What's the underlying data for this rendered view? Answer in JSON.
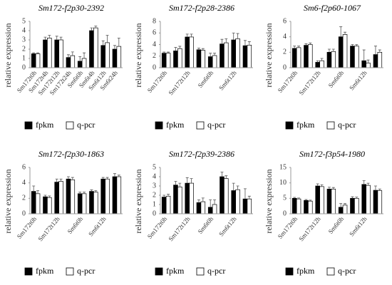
{
  "chart_data": [
    {
      "type": "bar",
      "title": "Sm172-f2p30-2392",
      "y_label": "relative expression",
      "categories": [
        "Sm172t0h",
        "Sm172t4h",
        "Sm172t12h",
        "Sm172t24h",
        "Sm6t0h",
        "Sm6t4h",
        "Sm6t12h",
        "Sm6t24h"
      ],
      "series": [
        {
          "name": "fpkm",
          "color": "#000000",
          "values": [
            1.5,
            3.0,
            3.0,
            1.1,
            0.7,
            4.0,
            2.4,
            2.0
          ],
          "errors": [
            0.1,
            0.3,
            0.4,
            0.3,
            0.5,
            0.3,
            0.5,
            0.4
          ]
        },
        {
          "name": "q-pcr",
          "color": "#ffffff",
          "values": [
            1.5,
            3.2,
            3.0,
            1.3,
            1.0,
            4.3,
            2.7,
            2.3
          ],
          "errors": [
            0.1,
            0.3,
            0.3,
            0.4,
            0.6,
            0.2,
            0.8,
            0.9
          ]
        }
      ],
      "ylim": [
        0,
        5
      ],
      "yticks": [
        0,
        1,
        2,
        3,
        4,
        5
      ]
    },
    {
      "type": "bar",
      "title": "Sm172-f2p28-2386",
      "y_label": "relative expression",
      "categories": [
        "Sm172t0h",
        null,
        "Sm172t12h",
        null,
        "Sm6t0h",
        null,
        "Sm6t12h",
        null
      ],
      "series": [
        {
          "name": "fpkm",
          "color": "#000000",
          "values": [
            2.5,
            2.9,
            5.3,
            3.1,
            1.9,
            4.1,
            4.8,
            3.8
          ],
          "errors": [
            0.2,
            0.6,
            0.5,
            0.3,
            0.6,
            0.8,
            1.2,
            0.9
          ]
        },
        {
          "name": "q-pcr",
          "color": "#ffffff",
          "values": [
            2.5,
            3.3,
            5.3,
            3.0,
            2.1,
            4.3,
            5.0,
            3.9
          ],
          "errors": [
            0.2,
            0.4,
            0.5,
            0.3,
            0.4,
            0.7,
            0.9,
            0.6
          ]
        }
      ],
      "ylim": [
        0,
        8
      ],
      "yticks": [
        0,
        2,
        4,
        6,
        8
      ]
    },
    {
      "type": "bar",
      "title": "Sm6-f2p60-1067",
      "y_label": "relative expression",
      "categories": [
        "Sm172t0h",
        null,
        "Sm172t12h",
        null,
        "Sm6t0h",
        null,
        "Sm6t12h",
        null
      ],
      "series": [
        {
          "name": "fpkm",
          "color": "#000000",
          "values": [
            2.5,
            2.9,
            0.7,
            2.0,
            4.0,
            2.8,
            0.9,
            1.7
          ],
          "errors": [
            0.3,
            0.2,
            0.2,
            0.4,
            1.3,
            0.2,
            1.4,
            1.1
          ]
        },
        {
          "name": "q-pcr",
          "color": "#ffffff",
          "values": [
            2.6,
            3.0,
            0.9,
            2.1,
            4.3,
            2.8,
            0.6,
            2.0
          ],
          "errors": [
            0.2,
            0.2,
            0.3,
            0.3,
            0.3,
            0.2,
            0.4,
            0.3
          ]
        }
      ],
      "ylim": [
        0,
        6
      ],
      "yticks": [
        0,
        2,
        4,
        6
      ]
    },
    {
      "type": "bar",
      "title": "Sm172-f2p30-1863",
      "y_label": "relative expression",
      "categories": [
        "Sm172t0h",
        null,
        "Sm172t12h",
        null,
        "Sm6t0h",
        null,
        "Sm6t12h",
        null
      ],
      "series": [
        {
          "name": "fpkm",
          "color": "#000000",
          "values": [
            2.9,
            2.2,
            4.1,
            4.5,
            2.6,
            2.9,
            4.5,
            4.8
          ],
          "errors": [
            0.7,
            0.2,
            0.4,
            0.3,
            0.2,
            0.2,
            0.2,
            0.4
          ]
        },
        {
          "name": "q-pcr",
          "color": "#ffffff",
          "values": [
            2.6,
            2.1,
            4.2,
            4.4,
            2.6,
            2.8,
            4.5,
            4.8
          ],
          "errors": [
            0.4,
            0.2,
            0.3,
            0.3,
            0.2,
            0.2,
            0.2,
            0.2
          ]
        }
      ],
      "ylim": [
        0,
        6
      ],
      "yticks": [
        0,
        2,
        4,
        6
      ]
    },
    {
      "type": "bar",
      "title": "Sm172-f2p39-2386",
      "y_label": "relative expression",
      "categories": [
        "Sm172t0h",
        null,
        "Sm172t12h",
        null,
        "Sm6t0h",
        null,
        "Sm6t12h",
        null
      ],
      "series": [
        {
          "name": "fpkm",
          "color": "#000000",
          "values": [
            1.8,
            3.1,
            3.3,
            1.2,
            0.7,
            4.0,
            2.5,
            1.6
          ],
          "errors": [
            0.2,
            0.4,
            0.6,
            0.3,
            0.8,
            0.5,
            0.8,
            1.1
          ]
        },
        {
          "name": "q-pcr",
          "color": "#ffffff",
          "values": [
            1.9,
            2.9,
            3.3,
            1.3,
            1.0,
            3.8,
            2.6,
            1.6
          ],
          "errors": [
            0.2,
            0.4,
            0.5,
            0.4,
            0.5,
            0.3,
            0.4,
            0.3
          ]
        }
      ],
      "ylim": [
        0,
        5
      ],
      "yticks": [
        0,
        1,
        2,
        3,
        4,
        5
      ]
    },
    {
      "type": "bar",
      "title": "Sm172-f3p54-1980",
      "y_label": "relative expression",
      "categories": [
        "Sm172t0h",
        null,
        "Sm172t12h",
        null,
        "Sm6t0h",
        null,
        "Sm6t12h",
        null
      ],
      "series": [
        {
          "name": "fpkm",
          "color": "#000000",
          "values": [
            5.0,
            4.3,
            9.0,
            8.0,
            2.1,
            5.0,
            9.5,
            7.6
          ],
          "errors": [
            0.3,
            0.3,
            0.7,
            0.6,
            1.2,
            0.5,
            1.2,
            1.4
          ]
        },
        {
          "name": "q-pcr",
          "color": "#ffffff",
          "values": [
            4.8,
            4.1,
            8.8,
            8.0,
            2.8,
            5.0,
            9.2,
            7.5
          ],
          "errors": [
            0.3,
            0.3,
            0.6,
            0.5,
            0.5,
            0.4,
            0.7,
            0.5
          ]
        }
      ],
      "ylim": [
        0,
        15
      ],
      "yticks": [
        0,
        5,
        10,
        15
      ]
    }
  ]
}
